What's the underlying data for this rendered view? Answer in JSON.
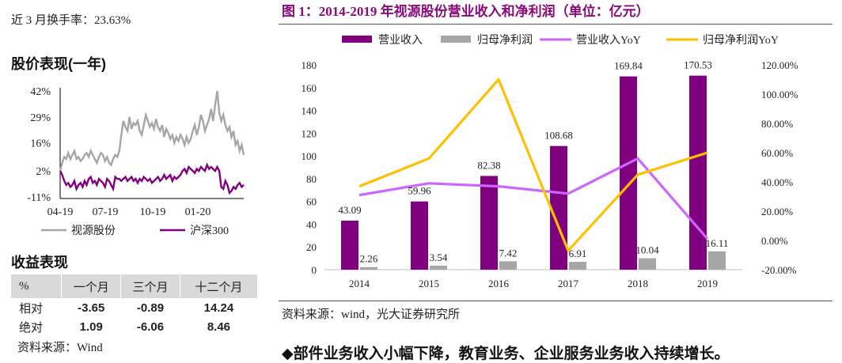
{
  "left": {
    "turnover_text": "近 3 月换手率：23.63%",
    "stock_section_title": "股价表现(一年)",
    "returns_section_title": "收益表现",
    "source": "资料来源：Wind",
    "returns_table": {
      "headers": [
        "%",
        "一个月",
        "三个月",
        "十二个月"
      ],
      "rows": [
        {
          "label": "相对",
          "values": [
            "-3.65",
            "-0.89",
            "14.24"
          ]
        },
        {
          "label": "绝对",
          "values": [
            "1.09",
            "-6.06",
            "8.46"
          ]
        }
      ]
    }
  },
  "right": {
    "figure_title": "图 1：2014-2019 年视源股份营业收入和净利润（单位：亿元）",
    "source": "资料来源：wind，光大证券研究所",
    "bottom_note": "◆部件业务收入小幅下降，教育业务、企业服务业务收入持续增长。"
  },
  "colors": {
    "revenue": "#800080",
    "profit": "#a6a6a6",
    "revenue_yoy": "#cc66ff",
    "profit_yoy": "#ffc000",
    "stock": "#a6a6a6",
    "index": "#800080",
    "title": "#8b0a7a"
  },
  "chart_data": [
    {
      "type": "line",
      "x_ticks": [
        "04-19",
        "07-19",
        "10-19",
        "01-20"
      ],
      "y_ticks": [
        "42%",
        "29%",
        "16%",
        "2%",
        "-11%"
      ],
      "ylim": [
        -11,
        42
      ],
      "legend": "bottom",
      "series": [
        {
          "name": "视源股份",
          "values": [
            2,
            6,
            9,
            8,
            11,
            8,
            10,
            12,
            8,
            9,
            7,
            8,
            10,
            11,
            9,
            12,
            10,
            8,
            6,
            9,
            11,
            10,
            7,
            9,
            6,
            5,
            8,
            10,
            9,
            12,
            20,
            27,
            24,
            22,
            29,
            23,
            26,
            25,
            27,
            22,
            20,
            25,
            30,
            27,
            24,
            26,
            23,
            28,
            24,
            22,
            25,
            19,
            23,
            21,
            18,
            20,
            16,
            19,
            17,
            20,
            18,
            15,
            19,
            16,
            18,
            22,
            25,
            20,
            24,
            30,
            27,
            22,
            25,
            28,
            33,
            27,
            35,
            42,
            31,
            27,
            30,
            25,
            22,
            24,
            19,
            22,
            15,
            17,
            12,
            15,
            10
          ]
        },
        {
          "name": "沪深300",
          "values": [
            2,
            0,
            -3,
            -5,
            -4,
            -6,
            -5,
            -3,
            -7,
            -5,
            -4,
            -6,
            -3,
            -5,
            -2,
            -1,
            -4,
            -3,
            -5,
            -2,
            -3,
            -4,
            -6,
            -2,
            -3,
            -5,
            -7,
            -1,
            -2,
            -2,
            -3,
            -2,
            -1,
            -3,
            -2,
            -1,
            -3,
            -2,
            -4,
            -2,
            -3,
            -1,
            -2,
            -3,
            -2,
            -4,
            -3,
            -2,
            -1,
            -3,
            -2,
            0,
            -2,
            -1,
            0,
            -3,
            -1,
            -2,
            -1,
            0,
            2,
            3,
            1,
            4,
            3,
            2,
            1,
            3,
            2,
            4,
            3,
            2,
            5,
            3,
            4,
            3,
            2,
            4,
            2,
            -6,
            -7,
            -3,
            -5,
            -9,
            -8,
            -6,
            -7,
            -5,
            -4,
            -6,
            -5
          ]
        }
      ]
    },
    {
      "type": "bar",
      "categories": [
        "2014",
        "2015",
        "2016",
        "2017",
        "2018",
        "2019"
      ],
      "ylim": [
        0,
        180
      ],
      "y_ticks": [
        0,
        20,
        40,
        60,
        80,
        100,
        120,
        140,
        160,
        180
      ],
      "y2lim": [
        -20,
        120
      ],
      "y2_ticks": [
        "-20.00%",
        "0.00%",
        "20.00%",
        "40.00%",
        "60.00%",
        "80.00%",
        "100.00%",
        "120.00%"
      ],
      "legend": "top",
      "series": [
        {
          "name": "营业收入",
          "kind": "bar",
          "values": [
            43.09,
            59.96,
            82.38,
            108.68,
            169.84,
            170.53
          ]
        },
        {
          "name": "归母净利润",
          "kind": "bar",
          "values": [
            2.26,
            3.54,
            7.42,
            6.91,
            10.04,
            16.11
          ]
        },
        {
          "name": "营业收入YoY",
          "kind": "line",
          "axis": "right",
          "values": [
            31,
            39,
            37,
            32,
            56,
            1
          ]
        },
        {
          "name": "归母净利润YoY",
          "kind": "line",
          "axis": "right",
          "values": [
            37,
            56,
            110,
            -7,
            45,
            60
          ]
        }
      ]
    }
  ]
}
